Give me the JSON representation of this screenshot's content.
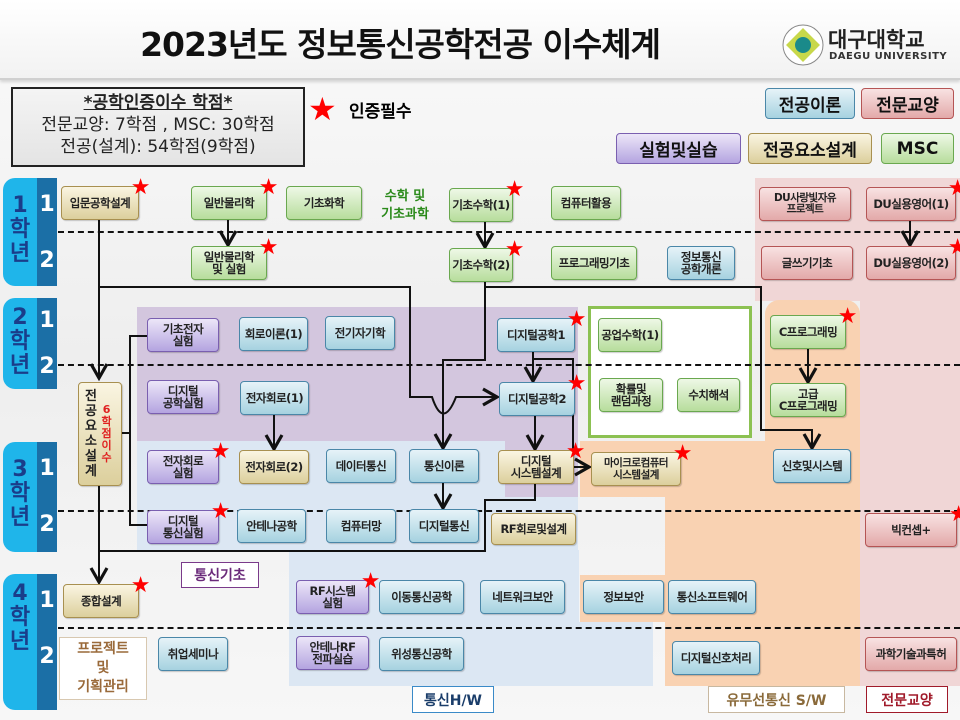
{
  "title": "2023년도 정보통신공학전공 이수체계",
  "logo": {
    "name_ko": "대구대학교",
    "name_en": "DAEGU UNIVERSITY"
  },
  "credits_box": {
    "heading": "*공학인증이수 학점*",
    "line1": "전문교양: 7학점 , MSC: 30학점",
    "line2": "전공(설계): 54학점(9학점)"
  },
  "required_legend": {
    "icon": "star-icon",
    "label": "인증필수",
    "color": "#ff0000"
  },
  "legend": {
    "major_theory": "전공이론",
    "general": "전문교양",
    "lab": "실험및실습",
    "design": "전공요소설계",
    "msc": "MSC"
  },
  "colors": {
    "msc": "#b7dd9c",
    "major_theory": "#a6d2e0",
    "lab": "#b4a4e0",
    "design": "#dccf9c",
    "general": "#e3a9a9",
    "year": "#1fb5ea",
    "semester": "#1b6fa6"
  },
  "years": [
    {
      "label": "1\n학\n년",
      "semesters": [
        "1",
        "2"
      ]
    },
    {
      "label": "2\n학\n년",
      "semesters": [
        "1",
        "2"
      ]
    },
    {
      "label": "3\n학\n년",
      "semesters": [
        "1",
        "2"
      ]
    },
    {
      "label": "4\n학\n년",
      "semesters": [
        "1",
        "2"
      ]
    }
  ],
  "groups": {
    "math_science": "수학 및\n기초과학",
    "comm_basic": "통신기초",
    "comm_hw": "통신H/W",
    "sw": "유무선통신 S/W",
    "general": "전문교양",
    "project": "프로젝트\n및\n기획관리",
    "design_vertical": "전\n공\n요\n소\n설\n계",
    "design_credits": "6\n학\n점\n이\n수"
  },
  "courses": [
    {
      "label": "입문공학설계",
      "category": "design",
      "required": true
    },
    {
      "label": "일반물리학",
      "category": "msc",
      "required": true
    },
    {
      "label": "기초화학",
      "category": "msc",
      "required": false
    },
    {
      "label": "기초수학(1)",
      "category": "msc",
      "required": true
    },
    {
      "label": "컴퓨터활용",
      "category": "msc",
      "required": false
    },
    {
      "label": "DU사랑빛자유\n프로젝트",
      "category": "general",
      "required": false
    },
    {
      "label": "DU실용영어(1)",
      "category": "general",
      "required": true
    },
    {
      "label": "일반물리학\n및 실험",
      "category": "msc",
      "required": true
    },
    {
      "label": "기초수학(2)",
      "category": "msc",
      "required": true
    },
    {
      "label": "프로그래밍기초",
      "category": "msc",
      "required": false
    },
    {
      "label": "정보통신\n공학개론",
      "category": "major_theory",
      "required": false
    },
    {
      "label": "글쓰기기초",
      "category": "general",
      "required": false
    },
    {
      "label": "DU실용영어(2)",
      "category": "general",
      "required": true
    },
    {
      "label": "기초전자\n실험",
      "category": "lab",
      "required": false
    },
    {
      "label": "회로이론(1)",
      "category": "major_theory",
      "required": false
    },
    {
      "label": "전기자기학",
      "category": "major_theory",
      "required": false
    },
    {
      "label": "디지털공학1",
      "category": "major_theory",
      "required": true
    },
    {
      "label": "공업수학(1)",
      "category": "msc",
      "required": false
    },
    {
      "label": "C프로그래밍",
      "category": "msc",
      "required": true
    },
    {
      "label": "디지털\n공학실험",
      "category": "lab",
      "required": false
    },
    {
      "label": "전자회로(1)",
      "category": "major_theory",
      "required": false
    },
    {
      "label": "디지털공학2",
      "category": "major_theory",
      "required": true
    },
    {
      "label": "확률및\n랜덤과정",
      "category": "msc",
      "required": false
    },
    {
      "label": "수치해석",
      "category": "msc",
      "required": false
    },
    {
      "label": "고급\nC프로그래밍",
      "category": "msc",
      "required": false
    },
    {
      "label": "전자회로\n실험",
      "category": "lab",
      "required": true
    },
    {
      "label": "전자회로(2)",
      "category": "design",
      "required": false
    },
    {
      "label": "데이터통신",
      "category": "major_theory",
      "required": false
    },
    {
      "label": "통신이론",
      "category": "major_theory",
      "required": false
    },
    {
      "label": "디지털\n시스템설계",
      "category": "design",
      "required": true
    },
    {
      "label": "마이크로컴퓨터\n시스템설계",
      "category": "design",
      "required": true
    },
    {
      "label": "신호및시스템",
      "category": "major_theory",
      "required": false
    },
    {
      "label": "디지털\n통신실험",
      "category": "lab",
      "required": true
    },
    {
      "label": "안테나공학",
      "category": "major_theory",
      "required": false
    },
    {
      "label": "컴퓨터망",
      "category": "major_theory",
      "required": false
    },
    {
      "label": "디지털통신",
      "category": "major_theory",
      "required": false
    },
    {
      "label": "RF회로및설계",
      "category": "design",
      "required": false
    },
    {
      "label": "빅컨셉+",
      "category": "general",
      "required": true
    },
    {
      "label": "종합설계",
      "category": "design",
      "required": true
    },
    {
      "label": "RF시스템\n실험",
      "category": "lab",
      "required": true
    },
    {
      "label": "이동통신공학",
      "category": "major_theory",
      "required": false
    },
    {
      "label": "네트워크보안",
      "category": "major_theory",
      "required": false
    },
    {
      "label": "정보보안",
      "category": "major_theory",
      "required": false
    },
    {
      "label": "통신소프트웨어",
      "category": "major_theory",
      "required": false
    },
    {
      "label": "취업세미나",
      "category": "major_theory",
      "required": false
    },
    {
      "label": "안테나RF\n전파실습",
      "category": "lab",
      "required": false
    },
    {
      "label": "위성통신공학",
      "category": "major_theory",
      "required": false
    },
    {
      "label": "디지털신호처리",
      "category": "major_theory",
      "required": false
    },
    {
      "label": "과학기술과특허",
      "category": "general",
      "required": false
    }
  ]
}
